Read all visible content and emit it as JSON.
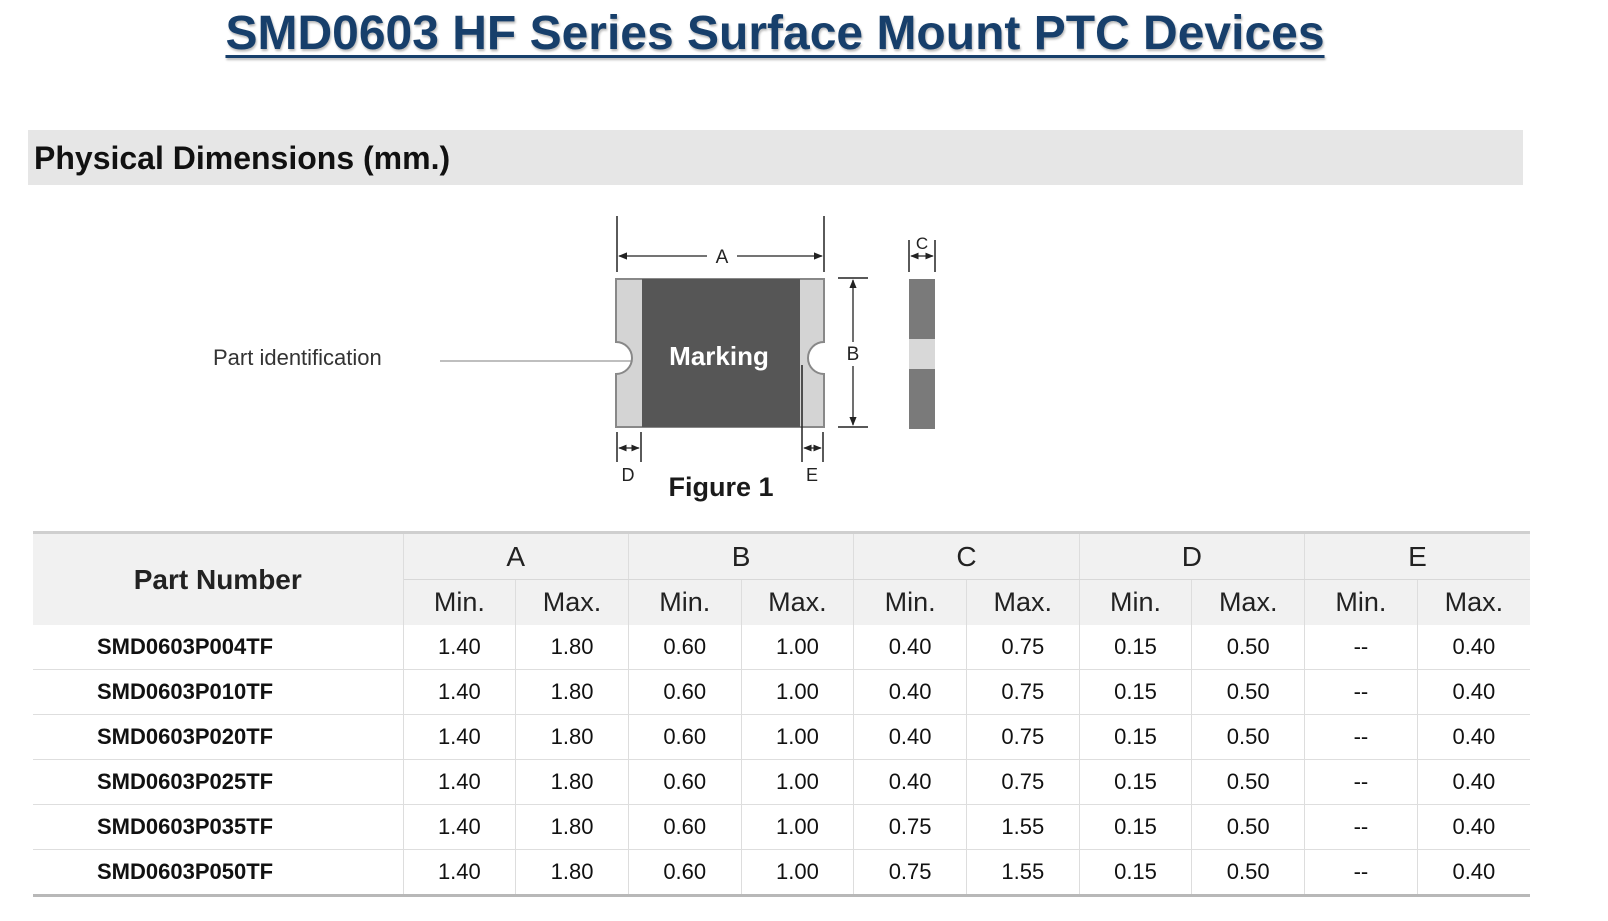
{
  "page_title": "SMD0603 HF Series Surface Mount PTC Devices",
  "section_title": "Physical Dimensions (mm.)",
  "figure": {
    "caption": "Figure 1",
    "marking_label": "Marking",
    "callout_label": "Part identification",
    "dim_a": "A",
    "dim_b": "B",
    "dim_c": "C",
    "dim_d": "D",
    "dim_e": "E",
    "colors": {
      "body": "#565656",
      "terminal": "#d4d4d4",
      "outline": "#888888",
      "side_dark": "#7a7a7a",
      "side_light": "#d8d8d8"
    }
  },
  "table": {
    "part_header": "Part Number",
    "groups": [
      {
        "label": "A",
        "min": "Min.",
        "max": "Max."
      },
      {
        "label": "B",
        "min": "Min.",
        "max": "Max."
      },
      {
        "label": "C",
        "min": "Min.",
        "max": "Max."
      },
      {
        "label": "D",
        "min": "Min.",
        "max": "Max."
      },
      {
        "label": "E",
        "min": "Min.",
        "max": "Max."
      }
    ],
    "rows": [
      {
        "part": "SMD0603P004TF",
        "vals": [
          "1.40",
          "1.80",
          "0.60",
          "1.00",
          "0.40",
          "0.75",
          "0.15",
          "0.50",
          "--",
          "0.40"
        ]
      },
      {
        "part": "SMD0603P010TF",
        "vals": [
          "1.40",
          "1.80",
          "0.60",
          "1.00",
          "0.40",
          "0.75",
          "0.15",
          "0.50",
          "--",
          "0.40"
        ]
      },
      {
        "part": "SMD0603P020TF",
        "vals": [
          "1.40",
          "1.80",
          "0.60",
          "1.00",
          "0.40",
          "0.75",
          "0.15",
          "0.50",
          "--",
          "0.40"
        ]
      },
      {
        "part": "SMD0603P025TF",
        "vals": [
          "1.40",
          "1.80",
          "0.60",
          "1.00",
          "0.40",
          "0.75",
          "0.15",
          "0.50",
          "--",
          "0.40"
        ]
      },
      {
        "part": "SMD0603P035TF",
        "vals": [
          "1.40",
          "1.80",
          "0.60",
          "1.00",
          "0.75",
          "1.55",
          "0.15",
          "0.50",
          "--",
          "0.40"
        ]
      },
      {
        "part": "SMD0603P050TF",
        "vals": [
          "1.40",
          "1.80",
          "0.60",
          "1.00",
          "0.75",
          "1.55",
          "0.15",
          "0.50",
          "--",
          "0.40"
        ]
      }
    ]
  }
}
